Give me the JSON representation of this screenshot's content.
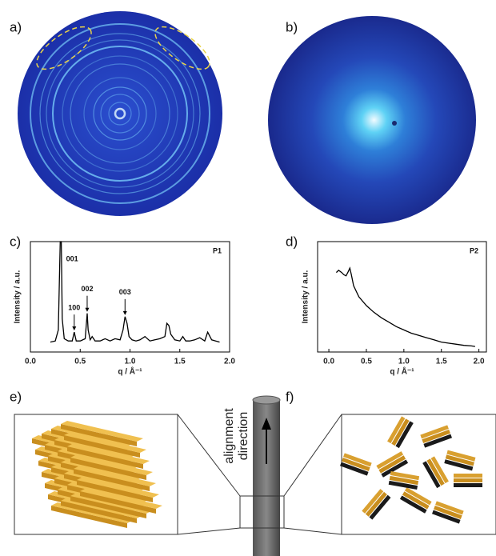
{
  "panels": [
    "a)",
    "b)",
    "c)",
    "d)",
    "e)",
    "f)"
  ],
  "diagram": {
    "label_lines": [
      "alignment",
      "direction"
    ]
  },
  "chart_data": [
    {
      "type": "line",
      "x_label": "q / Å⁻¹",
      "y_label": "Intensity / a.u.",
      "xlim": [
        0,
        2
      ],
      "ylim": [
        0,
        100
      ],
      "xticks": [
        {
          "value": 0,
          "label": "0.0"
        },
        {
          "value": 0.5,
          "label": "0.5"
        },
        {
          "value": 1,
          "label": "1.0"
        },
        {
          "value": 1.5,
          "label": "1.5"
        },
        {
          "value": 2,
          "label": "2.0"
        }
      ],
      "x": [
        0.2,
        0.25,
        0.28,
        0.3,
        0.31,
        0.32,
        0.34,
        0.38,
        0.42,
        0.44,
        0.46,
        0.5,
        0.55,
        0.57,
        0.58,
        0.6,
        0.62,
        0.65,
        0.7,
        0.75,
        0.8,
        0.85,
        0.9,
        0.93,
        0.95,
        0.97,
        0.99,
        1.02,
        1.06,
        1.1,
        1.15,
        1.2,
        1.25,
        1.3,
        1.35,
        1.37,
        1.39,
        1.41,
        1.45,
        1.5,
        1.53,
        1.56,
        1.6,
        1.65,
        1.7,
        1.75,
        1.78,
        1.82,
        1.86,
        1.9
      ],
      "series": [
        {
          "name": "P1",
          "color": "#000000",
          "values": [
            9,
            10,
            20,
            100,
            100,
            30,
            12,
            10,
            10,
            18,
            10,
            10,
            12,
            35,
            20,
            11,
            14,
            10,
            10,
            12,
            10,
            12,
            11,
            20,
            32,
            26,
            14,
            11,
            10,
            11,
            14,
            10,
            11,
            12,
            14,
            26,
            24,
            16,
            11,
            10,
            14,
            10,
            10,
            11,
            13,
            10,
            18,
            11,
            10,
            9
          ]
        }
      ],
      "annotations": [
        {
          "text": "001",
          "x": 0.31
        },
        {
          "text": "100",
          "x": 0.44
        },
        {
          "text": "002",
          "x": 0.57
        },
        {
          "text": "003",
          "x": 0.95
        }
      ]
    },
    {
      "type": "line",
      "x_label": "q / Å⁻¹",
      "y_label": "Intensity / a.u.",
      "xlim": [
        -0.15,
        2.1
      ],
      "ylim": [
        0,
        100
      ],
      "xticks": [
        {
          "value": 0,
          "label": "0.0"
        },
        {
          "value": 0.5,
          "label": "0.5"
        },
        {
          "value": 1,
          "label": "1.0"
        },
        {
          "value": 1.5,
          "label": "1.5"
        },
        {
          "value": 2,
          "label": "2.0"
        }
      ],
      "x": [
        0.1,
        0.13,
        0.17,
        0.2,
        0.23,
        0.26,
        0.28,
        0.3,
        0.33,
        0.4,
        0.5,
        0.6,
        0.7,
        0.8,
        0.9,
        1.0,
        1.1,
        1.2,
        1.3,
        1.4,
        1.5,
        1.6,
        1.7,
        1.8,
        1.9,
        1.95
      ],
      "series": [
        {
          "name": "P2",
          "color": "#000000",
          "values": [
            72,
            74,
            72,
            70,
            69,
            73,
            76,
            70,
            60,
            50,
            42,
            36,
            31,
            27,
            23,
            20,
            17,
            15,
            13,
            11,
            9,
            8,
            7,
            6,
            5.5,
            5
          ]
        }
      ],
      "annotations": []
    }
  ]
}
